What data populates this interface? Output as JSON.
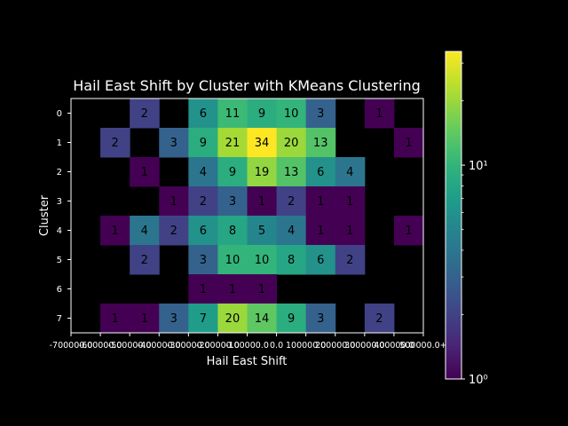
{
  "chart_data": {
    "type": "heatmap",
    "title": "Hail East Shift by Cluster with KMeans Clustering",
    "xlabel": "Hail East Shift",
    "ylabel": "Cluster",
    "x_tick_labels": [
      "-700000.0",
      "-600000.0",
      "-500000.0",
      "-400000.0",
      "-300000.0",
      "-200000.0",
      "-100000.0",
      "0.0",
      "100000.0",
      "200000.0",
      "300000.0",
      "400000.0",
      "500000.0+"
    ],
    "y_categories": [
      "0",
      "1",
      "2",
      "3",
      "4",
      "5",
      "6",
      "7"
    ],
    "matrix": [
      [
        null,
        null,
        2,
        null,
        6,
        11,
        9,
        10,
        3,
        null,
        1,
        null
      ],
      [
        null,
        2,
        null,
        3,
        9,
        21,
        34,
        20,
        13,
        null,
        null,
        1
      ],
      [
        null,
        null,
        1,
        null,
        4,
        9,
        19,
        13,
        6,
        4,
        null,
        null
      ],
      [
        null,
        null,
        null,
        1,
        2,
        3,
        1,
        2,
        1,
        1,
        null,
        null
      ],
      [
        null,
        1,
        4,
        2,
        6,
        8,
        5,
        4,
        1,
        1,
        null,
        1
      ],
      [
        null,
        null,
        2,
        null,
        3,
        10,
        10,
        8,
        6,
        2,
        null,
        null
      ],
      [
        null,
        null,
        null,
        null,
        1,
        1,
        1,
        null,
        null,
        null,
        null,
        null
      ],
      [
        null,
        1,
        1,
        3,
        7,
        20,
        14,
        9,
        3,
        null,
        2,
        null
      ]
    ],
    "colorscale": "viridis",
    "color_scale_type": "log",
    "color_range": [
      1,
      34
    ],
    "colorbar_ticks": [
      {
        "value": 1,
        "label": "10⁰"
      },
      {
        "value": 10,
        "label": "10¹"
      }
    ],
    "background_color": "#000000",
    "text_color": "#ffffff",
    "grid": false
  }
}
